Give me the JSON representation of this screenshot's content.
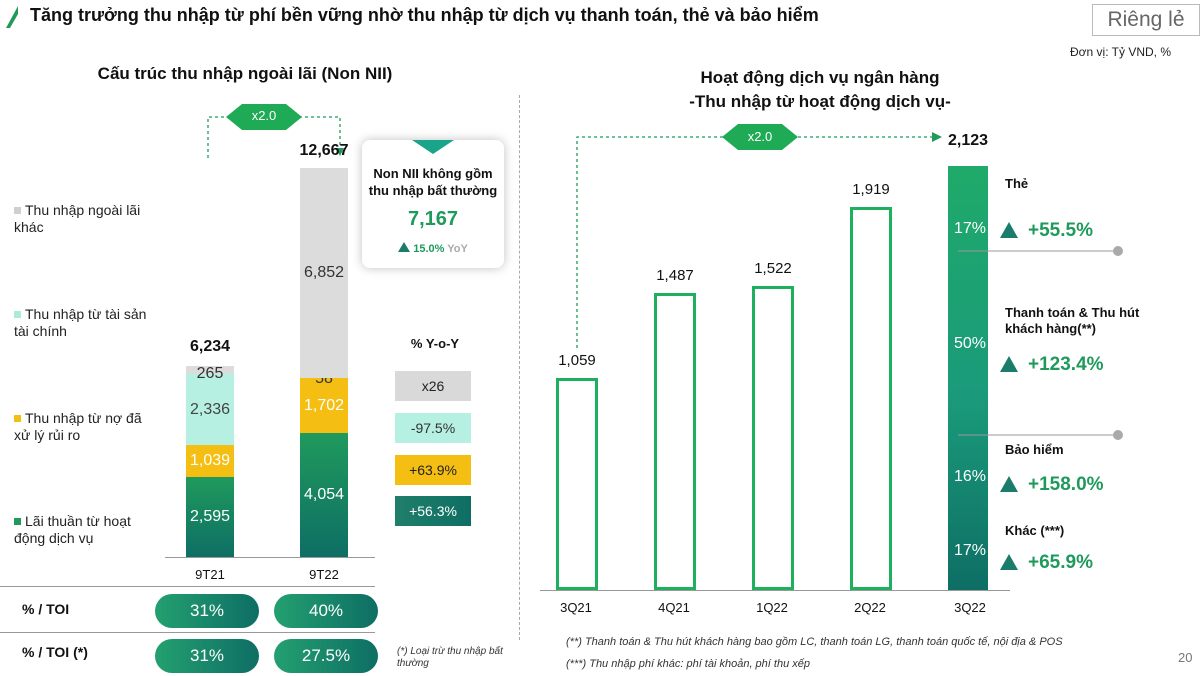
{
  "header": {
    "title": "Tăng trưởng thu nhập từ phí bền vững nhờ thu nhập từ dịch vụ thanh toán, thẻ và bảo hiểm",
    "badge": "Riêng lẻ",
    "unit": "Đơn vị: Tỷ VND, %"
  },
  "left": {
    "title": "Cấu trúc thu nhập ngoài lãi (Non NII)",
    "multiplier": "x2.0",
    "legend": [
      "Thu nhập ngoài lãi khác",
      "Thu nhập từ tài sản tài chính",
      "Thu nhập từ nợ đã xử lý rủi ro",
      "Lãi thuần từ hoạt động dịch vụ"
    ],
    "yoy_title": "% Y-o-Y",
    "yoy": [
      "x26",
      "-97.5%",
      "+63.9%",
      "+56.3%"
    ],
    "popup": {
      "line1": "Non NII không gồm",
      "line2": "thu nhập bất thường",
      "value": "7,167",
      "growth": "15.0%",
      "growth_label": "YoY"
    },
    "toi_label": "% / TOI",
    "toi_values": [
      "31%",
      "40%"
    ],
    "toi2_label": "% / TOI (*)",
    "toi2_values": [
      "31%",
      "27.5%"
    ],
    "toi_note": "(*) Loại trừ thu nhập bất thường"
  },
  "right": {
    "title_line1": "Hoạt động dịch vụ ngân hàng",
    "title_line2": "-Thu nhập từ hoạt động dịch vụ-",
    "multiplier": "x2.0",
    "segments": [
      {
        "name": "Thẻ",
        "share": "17%",
        "growth": "+55.5%"
      },
      {
        "name": "Thanh toán & Thu hút khách hàng(**)",
        "share": "50%",
        "growth": "+123.4%"
      },
      {
        "name": "Bảo hiểm",
        "share": "16%",
        "growth": "+158.0%"
      },
      {
        "name": "Khác (***)",
        "share": "17%",
        "growth": "+65.9%"
      }
    ],
    "note1": "(**) Thanh toán & Thu hút khách hàng bao gồm LC, thanh toán LG, thanh toán quốc tế, nội địa & POS",
    "note2": "(***) Thu nhập phí khác: phí tài khoản, phí thu xếp"
  },
  "page_number": "20",
  "colors": {
    "green": "#1f9a5c",
    "teal": "#0e6e64",
    "gray": "#d9d9d9",
    "mint": "#b6f0e2",
    "yellow": "#f5be13"
  },
  "chart_data": [
    {
      "type": "bar",
      "stacked": true,
      "title": "Cấu trúc thu nhập ngoài lãi (Non NII)",
      "categories": [
        "9T21",
        "9T22"
      ],
      "series": [
        {
          "name": "Lãi thuần từ hoạt động dịch vụ",
          "values": [
            2595,
            4054
          ],
          "labels": [
            "2,595",
            "4,054"
          ]
        },
        {
          "name": "Thu nhập từ nợ đã xử lý rủi ro",
          "values": [
            1039,
            1702
          ],
          "labels": [
            "1,039",
            "1,702"
          ]
        },
        {
          "name": "Thu nhập từ tài sản tài chính",
          "values": [
            2336,
            58
          ],
          "labels": [
            "2,336",
            "58"
          ]
        },
        {
          "name": "Thu nhập ngoài lãi khác",
          "values": [
            265,
            6852
          ],
          "labels": [
            "265",
            "6,852"
          ]
        }
      ],
      "totals": [
        6234,
        12667
      ],
      "total_labels": [
        "6,234",
        "12,667"
      ]
    },
    {
      "type": "bar",
      "title": "Hoạt động dịch vụ ngân hàng -Thu nhập từ hoạt động dịch vụ-",
      "categories": [
        "3Q21",
        "4Q21",
        "1Q22",
        "2Q22",
        "3Q22"
      ],
      "values": [
        1059,
        1487,
        1522,
        1919,
        2123
      ],
      "labels": [
        "1,059",
        "1,487",
        "1,522",
        "1,919",
        "2,123"
      ]
    }
  ]
}
